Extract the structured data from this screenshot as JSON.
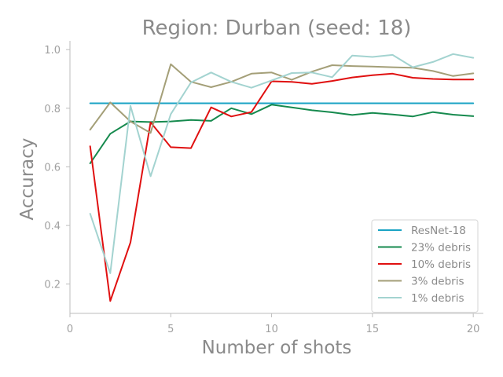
{
  "chart_data": {
    "type": "line",
    "title": "Region: Durban (seed: 18)",
    "xlabel": "Number of shots",
    "ylabel": "Accuracy",
    "xlim": [
      0,
      20.5
    ],
    "ylim": [
      0.1,
      1.03
    ],
    "xticks": [
      0,
      5,
      10,
      15,
      20
    ],
    "yticks": [
      0.2,
      0.4,
      0.6,
      0.8,
      1.0
    ],
    "ytick_labels": [
      "0.2",
      "0.4",
      "0.6",
      "0.8",
      "1.0"
    ],
    "grid": false,
    "legend_position": "lower-right",
    "x": [
      1,
      2,
      3,
      4,
      5,
      6,
      7,
      8,
      9,
      10,
      11,
      12,
      13,
      14,
      15,
      16,
      17,
      18,
      19,
      20
    ],
    "series": [
      {
        "name": "ResNet-18",
        "color": "#1aa3c4",
        "values": [
          0.817,
          0.817,
          0.817,
          0.817,
          0.817,
          0.817,
          0.817,
          0.817,
          0.817,
          0.817,
          0.817,
          0.817,
          0.817,
          0.817,
          0.817,
          0.817,
          0.817,
          0.817,
          0.817,
          0.817
        ]
      },
      {
        "name": "23% debris",
        "color": "#168a4e",
        "values": [
          0.612,
          0.713,
          0.755,
          0.753,
          0.755,
          0.76,
          0.757,
          0.8,
          0.78,
          0.812,
          0.803,
          0.793,
          0.786,
          0.777,
          0.784,
          0.779,
          0.772,
          0.787,
          0.778,
          0.773
        ]
      },
      {
        "name": "10% debris",
        "color": "#e01010",
        "values": [
          0.67,
          0.142,
          0.342,
          0.752,
          0.667,
          0.664,
          0.803,
          0.772,
          0.787,
          0.892,
          0.89,
          0.883,
          0.893,
          0.905,
          0.913,
          0.918,
          0.904,
          0.9,
          0.898,
          0.898
        ]
      },
      {
        "name": "3% debris",
        "color": "#a49f78",
        "values": [
          0.727,
          0.82,
          0.755,
          0.716,
          0.95,
          0.89,
          0.872,
          0.89,
          0.918,
          0.922,
          0.897,
          0.925,
          0.947,
          0.944,
          0.942,
          0.94,
          0.938,
          0.927,
          0.91,
          0.919
        ]
      },
      {
        "name": "1% debris",
        "color": "#a3d3d0",
        "values": [
          0.44,
          0.237,
          0.808,
          0.568,
          0.78,
          0.888,
          0.922,
          0.89,
          0.87,
          0.895,
          0.92,
          0.922,
          0.906,
          0.98,
          0.975,
          0.982,
          0.94,
          0.958,
          0.985,
          0.972
        ]
      }
    ]
  }
}
